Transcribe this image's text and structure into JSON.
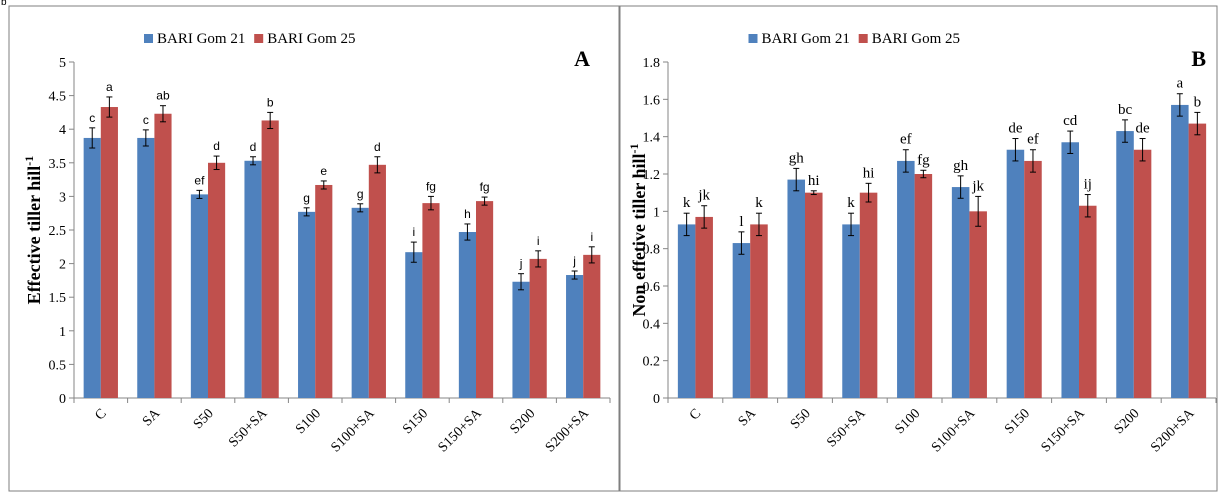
{
  "figure_label": "b",
  "colors": {
    "bari21": "#4f81bd",
    "bari25": "#c0504d",
    "axis": "#868686",
    "border": "#7f7f7f"
  },
  "panels": [
    {
      "letter": "A",
      "ylabel_main": "Effective tiller hill",
      "ylabel_sup": "-1"
    },
    {
      "letter": "B",
      "ylabel_main": "Non effetive tiller hill",
      "ylabel_sup": "-1"
    }
  ],
  "chart_data": [
    {
      "type": "bar",
      "panel": "A",
      "categories": [
        "C",
        "SA",
        "S50",
        "S50+SA",
        "S100",
        "S100+SA",
        "S150",
        "S150+SA",
        "S200",
        "S200+SA"
      ],
      "ylabel": "Effective tiller hill-1",
      "ylim": [
        0,
        5
      ],
      "yticks": [
        0,
        0.5,
        1,
        1.5,
        2,
        2.5,
        3,
        3.5,
        4,
        4.5,
        5
      ],
      "ytick_labels": [
        "0",
        "0.5",
        "1",
        "1.5",
        "2",
        "2.5",
        "3",
        "3.5",
        "4",
        "4.5",
        "5"
      ],
      "grid": false,
      "legend": "top-center",
      "series": [
        {
          "name": "BARI Gom 21",
          "values": [
            3.87,
            3.87,
            3.03,
            3.53,
            2.77,
            2.83,
            2.17,
            2.47,
            1.73,
            1.83
          ],
          "errors": [
            0.15,
            0.12,
            0.06,
            0.06,
            0.06,
            0.06,
            0.15,
            0.12,
            0.12,
            0.06
          ],
          "letters": [
            "c",
            "c",
            "ef",
            "d",
            "g",
            "g",
            "i",
            "h",
            "j",
            "j"
          ]
        },
        {
          "name": "BARI Gom 25",
          "values": [
            4.33,
            4.23,
            3.5,
            4.13,
            3.17,
            3.47,
            2.9,
            2.93,
            2.07,
            2.13
          ],
          "errors": [
            0.15,
            0.12,
            0.1,
            0.12,
            0.06,
            0.12,
            0.1,
            0.06,
            0.12,
            0.12
          ],
          "letters": [
            "a",
            "ab",
            "d",
            "b",
            "e",
            "d",
            "fg",
            "fg",
            "i",
            "i"
          ]
        }
      ]
    },
    {
      "type": "bar",
      "panel": "B",
      "categories": [
        "C",
        "SA",
        "S50",
        "S50+SA",
        "S100",
        "S100+SA",
        "S150",
        "S150+SA",
        "S200",
        "S200+SA"
      ],
      "ylabel": "Non effetive tiller hill-1",
      "ylim": [
        0,
        1.8
      ],
      "yticks": [
        0,
        0.2,
        0.4,
        0.6,
        0.8,
        1,
        1.2,
        1.4,
        1.6,
        1.8
      ],
      "ytick_labels": [
        "0",
        "0.2",
        "0.4",
        "0.6",
        "0.8",
        "1",
        "1.2",
        "1.4",
        "1.6",
        "1.8"
      ],
      "grid": false,
      "legend": "top-center",
      "series": [
        {
          "name": "BARI Gom 21",
          "values": [
            0.93,
            0.83,
            1.17,
            0.93,
            1.27,
            1.13,
            1.33,
            1.37,
            1.43,
            1.57
          ],
          "errors": [
            0.06,
            0.06,
            0.06,
            0.06,
            0.06,
            0.06,
            0.06,
            0.06,
            0.06,
            0.06
          ],
          "letters": [
            "k",
            "l",
            "gh",
            "k",
            "ef",
            "gh",
            "de",
            "cd",
            "bc",
            "a"
          ]
        },
        {
          "name": "BARI Gom 25",
          "values": [
            0.97,
            0.93,
            1.1,
            1.1,
            1.2,
            1.0,
            1.27,
            1.03,
            1.33,
            1.47
          ],
          "errors": [
            0.06,
            0.06,
            0.01,
            0.05,
            0.02,
            0.08,
            0.06,
            0.06,
            0.06,
            0.06
          ],
          "letters": [
            "jk",
            "k",
            "hi",
            "hi",
            "fg",
            "jk",
            "ef",
            "ij",
            "de",
            "b"
          ]
        }
      ]
    }
  ]
}
